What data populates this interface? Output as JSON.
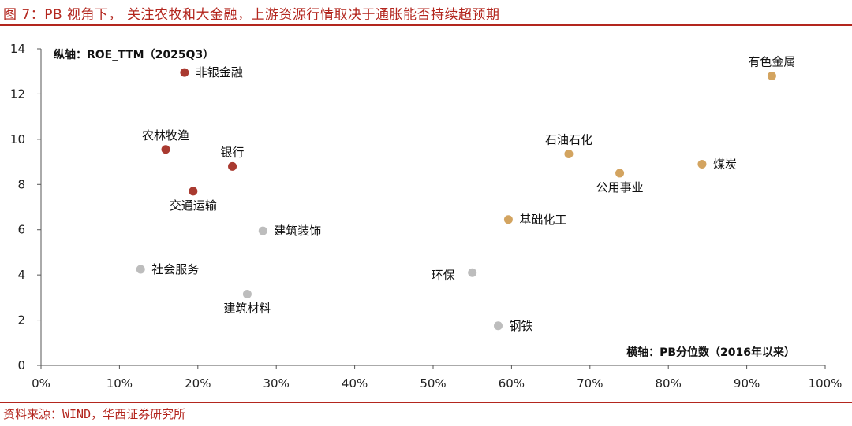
{
  "header": {
    "title": "图 7：PB 视角下， 关注农牧和大金融，上游资源行情取决于通胀能否持续超预期"
  },
  "footer": {
    "source": "资料来源：WIND，华西证券研究所"
  },
  "colors": {
    "accent": "#b3261e",
    "finance_group": "#a93a30",
    "resource_group": "#d3a460",
    "other_group": "#bdbdbd"
  },
  "chart_data": {
    "type": "scatter",
    "title": "",
    "xlabel": "横轴：PB分位数（2016年以来）",
    "ylabel": "纵轴：ROE_TTM（2025Q3）",
    "xlim": [
      0,
      100
    ],
    "ylim": [
      0,
      14
    ],
    "x_ticks": [
      0,
      10,
      20,
      30,
      40,
      50,
      60,
      70,
      80,
      90,
      100
    ],
    "x_tick_labels": [
      "0%",
      "10%",
      "20%",
      "30%",
      "40%",
      "50%",
      "60%",
      "70%",
      "80%",
      "90%",
      "100%"
    ],
    "y_ticks": [
      0,
      2,
      4,
      6,
      8,
      10,
      12,
      14
    ],
    "y_tick_labels": [
      "0",
      "2",
      "4",
      "6",
      "8",
      "10",
      "12",
      "14"
    ],
    "grid": false,
    "points": [
      {
        "label": "非银金融",
        "x": 18.3,
        "y": 12.95,
        "color": "#a93a30",
        "label_pos": "right"
      },
      {
        "label": "农林牧渔",
        "x": 15.9,
        "y": 9.55,
        "color": "#a93a30",
        "label_pos": "above"
      },
      {
        "label": "银行",
        "x": 24.4,
        "y": 8.8,
        "color": "#a93a30",
        "label_pos": "above"
      },
      {
        "label": "交通运输",
        "x": 19.4,
        "y": 7.7,
        "color": "#a93a30",
        "label_pos": "below"
      },
      {
        "label": "建筑装饰",
        "x": 28.3,
        "y": 5.95,
        "color": "#bdbdbd",
        "label_pos": "right"
      },
      {
        "label": "社会服务",
        "x": 12.7,
        "y": 4.25,
        "color": "#bdbdbd",
        "label_pos": "right"
      },
      {
        "label": "建筑材料",
        "x": 26.3,
        "y": 3.15,
        "color": "#bdbdbd",
        "label_pos": "below"
      },
      {
        "label": "环保",
        "x": 55.0,
        "y": 4.1,
        "color": "#bdbdbd",
        "label_pos": "left"
      },
      {
        "label": "钢铁",
        "x": 58.3,
        "y": 1.75,
        "color": "#bdbdbd",
        "label_pos": "right"
      },
      {
        "label": "基础化工",
        "x": 59.6,
        "y": 6.45,
        "color": "#d3a460",
        "label_pos": "right"
      },
      {
        "label": "石油石化",
        "x": 67.3,
        "y": 9.35,
        "color": "#d3a460",
        "label_pos": "above"
      },
      {
        "label": "公用事业",
        "x": 73.8,
        "y": 8.5,
        "color": "#d3a460",
        "label_pos": "below"
      },
      {
        "label": "煤炭",
        "x": 84.3,
        "y": 8.9,
        "color": "#d3a460",
        "label_pos": "right"
      },
      {
        "label": "有色金属",
        "x": 93.2,
        "y": 12.8,
        "color": "#d3a460",
        "label_pos": "above"
      }
    ]
  }
}
